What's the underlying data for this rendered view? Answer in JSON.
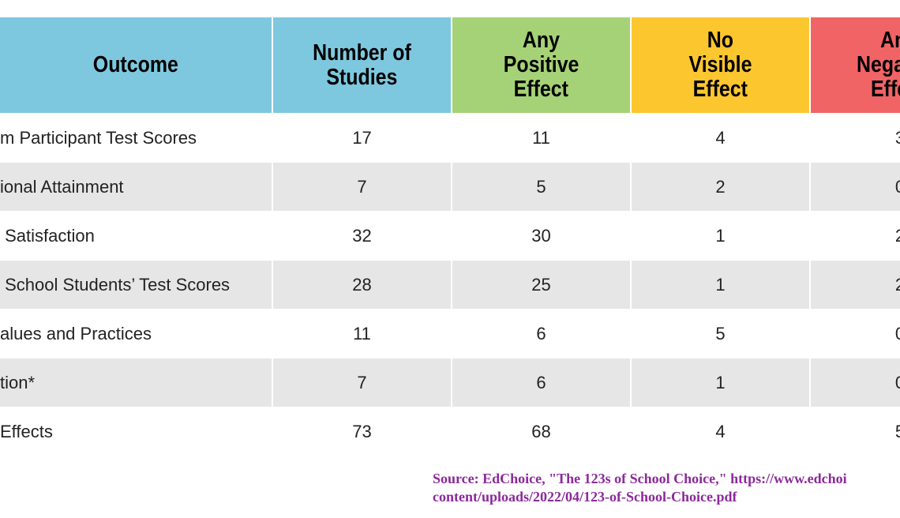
{
  "table": {
    "header": [
      [
        "Outcome"
      ],
      [
        "Number of",
        "Studies"
      ],
      [
        "Any",
        "Positive",
        "Effect"
      ],
      [
        "No",
        "Visible",
        "Effect"
      ],
      [
        "An",
        "Nega",
        "Effe"
      ]
    ],
    "rows": [
      [
        "m Participant Test Scores",
        17,
        11,
        4,
        3
      ],
      [
        "ional Attainment",
        7,
        5,
        2,
        0
      ],
      [
        " Satisfaction",
        32,
        30,
        1,
        2
      ],
      [
        " School Students’ Test Scores",
        28,
        25,
        1,
        2
      ],
      [
        "alues and Practices",
        11,
        6,
        5,
        0
      ],
      [
        "tion*",
        7,
        6,
        1,
        0
      ],
      [
        "Effects",
        73,
        68,
        4,
        5
      ]
    ]
  },
  "source": [
    "Source: EdChoice, \"The 123s of School Choice,\" https://www.edchoi",
    "content/uploads/2022/04/123-of-School-Choice.pdf"
  ]
}
